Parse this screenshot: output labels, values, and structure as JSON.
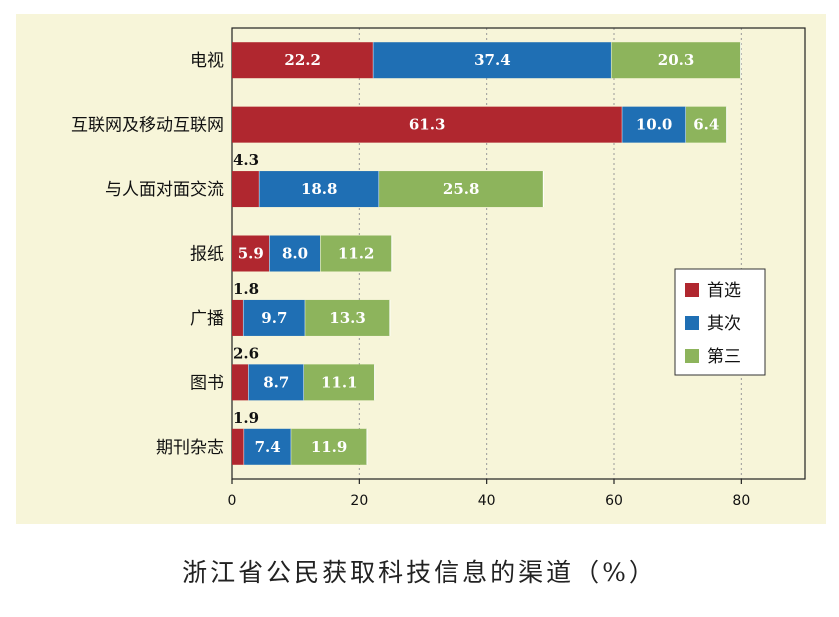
{
  "caption": "浙江省公民获取科技信息的渠道（%）",
  "chart_data": {
    "type": "bar",
    "orientation": "horizontal",
    "stacked": true,
    "categories": [
      "电视",
      "互联网及移动互联网",
      "与人面对面交流",
      "报纸",
      "广播",
      "图书",
      "期刊杂志"
    ],
    "series": [
      {
        "name": "首选",
        "color": "#b0272f",
        "values": [
          22.2,
          61.3,
          4.3,
          5.9,
          1.8,
          2.6,
          1.9
        ]
      },
      {
        "name": "其次",
        "color": "#1f6fb4",
        "values": [
          37.4,
          10.0,
          18.8,
          8.0,
          9.7,
          8.7,
          7.4
        ]
      },
      {
        "name": "第三",
        "color": "#8db45c",
        "values": [
          20.3,
          6.4,
          25.8,
          11.2,
          13.3,
          11.1,
          11.9
        ]
      }
    ],
    "xlim": [
      0,
      90
    ],
    "xticks": [
      0,
      20,
      40,
      60,
      80
    ],
    "grid": "vertical dotted",
    "legend_position": "right"
  }
}
